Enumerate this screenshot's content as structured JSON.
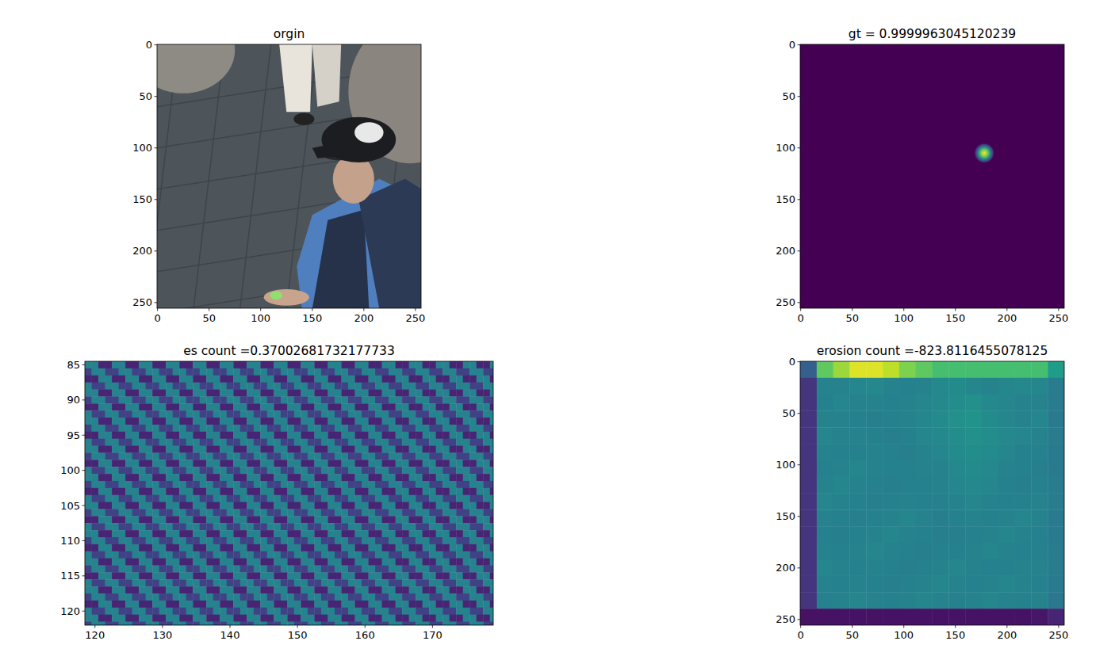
{
  "chart_data": [
    {
      "type": "image",
      "title": "orgin",
      "xlim": [
        -0.5,
        255.5
      ],
      "ylim": [
        255.5,
        -0.5
      ],
      "xticks": [
        0,
        50,
        100,
        150,
        200,
        250
      ],
      "yticks": [
        0,
        50,
        100,
        150,
        200,
        250
      ]
    },
    {
      "type": "heatmap",
      "title": "gt = 0.9999963045120239",
      "xlim": [
        -0.5,
        255.5
      ],
      "ylim": [
        255.5,
        -0.5
      ],
      "xticks": [
        0,
        50,
        100,
        150,
        200,
        250
      ],
      "yticks": [
        0,
        50,
        100,
        150,
        200,
        250
      ],
      "peak": {
        "x": 178,
        "y": 105
      }
    },
    {
      "type": "heatmap",
      "title": "es count =0.37002681732177733",
      "xlim": [
        118.5,
        179.0
      ],
      "ylim": [
        122.0,
        84.5
      ],
      "xticks": [
        120,
        130,
        140,
        150,
        160,
        170
      ],
      "yticks": [
        85,
        90,
        95,
        100,
        105,
        110,
        115,
        120
      ],
      "clim": [
        0,
        1
      ],
      "pattern": [
        [
          0.2,
          0.2,
          0.45,
          0.45
        ],
        [
          0.45,
          0.1,
          0.1,
          0.45
        ],
        [
          0.45,
          0.45,
          0.2,
          0.2
        ],
        [
          0.1,
          0.45,
          0.45,
          0.1
        ]
      ]
    },
    {
      "type": "heatmap",
      "title": "erosion count =-823.8116455078125",
      "xlim": [
        -0.5,
        255.5
      ],
      "ylim": [
        255.5,
        -0.5
      ],
      "xticks": [
        0,
        50,
        100,
        150,
        200,
        250
      ],
      "yticks": [
        0,
        50,
        100,
        150,
        200,
        250
      ],
      "clim": [
        0,
        1
      ],
      "cells": [
        [
          0.3,
          0.75,
          0.85,
          0.95,
          0.95,
          0.9,
          0.8,
          0.75,
          0.7,
          0.7,
          0.7,
          0.7,
          0.7,
          0.7,
          0.7,
          0.55
        ],
        [
          0.15,
          0.45,
          0.45,
          0.46,
          0.47,
          0.45,
          0.44,
          0.45,
          0.47,
          0.48,
          0.46,
          0.45,
          0.46,
          0.47,
          0.46,
          0.42
        ],
        [
          0.15,
          0.44,
          0.46,
          0.45,
          0.45,
          0.44,
          0.45,
          0.46,
          0.47,
          0.49,
          0.5,
          0.47,
          0.46,
          0.45,
          0.45,
          0.42
        ],
        [
          0.15,
          0.45,
          0.45,
          0.44,
          0.43,
          0.44,
          0.45,
          0.46,
          0.48,
          0.5,
          0.51,
          0.48,
          0.46,
          0.45,
          0.46,
          0.41
        ],
        [
          0.15,
          0.46,
          0.45,
          0.45,
          0.44,
          0.43,
          0.44,
          0.46,
          0.47,
          0.49,
          0.5,
          0.49,
          0.47,
          0.46,
          0.45,
          0.42
        ],
        [
          0.15,
          0.45,
          0.44,
          0.44,
          0.45,
          0.44,
          0.43,
          0.45,
          0.46,
          0.48,
          0.49,
          0.48,
          0.46,
          0.44,
          0.44,
          0.41
        ],
        [
          0.15,
          0.44,
          0.45,
          0.46,
          0.45,
          0.44,
          0.44,
          0.45,
          0.45,
          0.47,
          0.48,
          0.47,
          0.45,
          0.44,
          0.43,
          0.41
        ],
        [
          0.15,
          0.45,
          0.46,
          0.45,
          0.44,
          0.43,
          0.44,
          0.44,
          0.45,
          0.46,
          0.47,
          0.46,
          0.44,
          0.43,
          0.44,
          0.42
        ],
        [
          0.15,
          0.46,
          0.45,
          0.44,
          0.43,
          0.44,
          0.45,
          0.44,
          0.44,
          0.45,
          0.46,
          0.45,
          0.44,
          0.44,
          0.45,
          0.42
        ],
        [
          0.15,
          0.45,
          0.44,
          0.43,
          0.44,
          0.45,
          0.46,
          0.45,
          0.43,
          0.44,
          0.45,
          0.44,
          0.45,
          0.46,
          0.45,
          0.41
        ],
        [
          0.15,
          0.44,
          0.43,
          0.44,
          0.45,
          0.46,
          0.45,
          0.44,
          0.43,
          0.43,
          0.44,
          0.45,
          0.46,
          0.45,
          0.44,
          0.41
        ],
        [
          0.15,
          0.45,
          0.44,
          0.45,
          0.46,
          0.45,
          0.44,
          0.43,
          0.44,
          0.44,
          0.45,
          0.46,
          0.45,
          0.44,
          0.44,
          0.42
        ],
        [
          0.15,
          0.46,
          0.45,
          0.44,
          0.45,
          0.44,
          0.43,
          0.44,
          0.45,
          0.46,
          0.45,
          0.44,
          0.44,
          0.45,
          0.45,
          0.42
        ],
        [
          0.15,
          0.45,
          0.44,
          0.45,
          0.44,
          0.43,
          0.44,
          0.45,
          0.46,
          0.45,
          0.44,
          0.45,
          0.46,
          0.45,
          0.44,
          0.41
        ],
        [
          0.15,
          0.44,
          0.45,
          0.46,
          0.45,
          0.44,
          0.45,
          0.46,
          0.45,
          0.44,
          0.45,
          0.46,
          0.45,
          0.44,
          0.45,
          0.4
        ],
        [
          0.05,
          0.05,
          0.05,
          0.05,
          0.05,
          0.05,
          0.05,
          0.05,
          0.05,
          0.05,
          0.05,
          0.05,
          0.05,
          0.05,
          0.06,
          0.1
        ]
      ]
    }
  ]
}
